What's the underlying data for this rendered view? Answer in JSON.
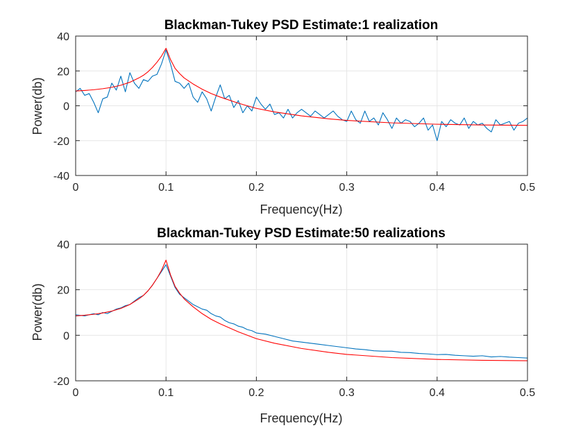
{
  "chart_data": [
    {
      "type": "line",
      "title": "Blackman-Tukey PSD Estimate:1 realization",
      "xlabel": "Frequency(Hz)",
      "ylabel": "Power(db)",
      "xlim": [
        0,
        0.5
      ],
      "ylim": [
        -40,
        40
      ],
      "xticks": [
        0,
        0.1,
        0.2,
        0.3,
        0.4,
        0.5
      ],
      "yticks": [
        -40,
        -20,
        0,
        20,
        40
      ],
      "xtick_labels": [
        "0",
        "0.1",
        "0.2",
        "0.3",
        "0.4",
        "0.5"
      ],
      "ytick_labels": [
        "-40",
        "-20",
        "0",
        "20",
        "40"
      ],
      "grid": true,
      "series": [
        {
          "color": "#0072BD",
          "x": [
            0,
            0.005,
            0.01,
            0.015,
            0.02,
            0.025,
            0.03,
            0.035,
            0.04,
            0.045,
            0.05,
            0.055,
            0.06,
            0.065,
            0.07,
            0.075,
            0.08,
            0.085,
            0.09,
            0.095,
            0.1,
            0.105,
            0.11,
            0.115,
            0.12,
            0.125,
            0.13,
            0.135,
            0.14,
            0.145,
            0.15,
            0.155,
            0.16,
            0.165,
            0.17,
            0.175,
            0.18,
            0.185,
            0.19,
            0.195,
            0.2,
            0.205,
            0.21,
            0.215,
            0.22,
            0.225,
            0.23,
            0.235,
            0.24,
            0.245,
            0.25,
            0.255,
            0.26,
            0.265,
            0.27,
            0.275,
            0.28,
            0.285,
            0.29,
            0.295,
            0.3,
            0.305,
            0.31,
            0.315,
            0.32,
            0.325,
            0.33,
            0.335,
            0.34,
            0.345,
            0.35,
            0.355,
            0.36,
            0.365,
            0.37,
            0.375,
            0.38,
            0.385,
            0.39,
            0.395,
            0.4,
            0.405,
            0.41,
            0.415,
            0.42,
            0.425,
            0.43,
            0.435,
            0.44,
            0.445,
            0.45,
            0.455,
            0.46,
            0.465,
            0.47,
            0.475,
            0.48,
            0.485,
            0.49,
            0.495,
            0.5
          ],
          "y": [
            8,
            10,
            6,
            7,
            2,
            -4,
            4,
            5,
            13,
            9,
            17,
            8,
            19,
            13,
            10,
            15,
            14,
            17,
            18,
            24,
            32,
            24,
            14,
            13,
            10,
            13,
            5,
            2,
            8,
            4,
            -3,
            5,
            12,
            4,
            6,
            -1,
            3,
            -4,
            0,
            -3,
            5,
            1,
            -2,
            1,
            -5,
            -4,
            -7,
            -2,
            -7,
            -4,
            -2,
            -4,
            -6,
            -3,
            -5,
            -7,
            -5,
            -3,
            -6,
            -8,
            -9,
            -3,
            -8,
            -10,
            -3,
            -9,
            -7,
            -11,
            -4,
            -8,
            -13,
            -7,
            -10,
            -8,
            -9,
            -12,
            -10,
            -7,
            -14,
            -11,
            -20,
            -9,
            -12,
            -8,
            -10,
            -11,
            -7,
            -13,
            -9,
            -11,
            -10,
            -13,
            -15,
            -8,
            -11,
            -10,
            -9,
            -14,
            -10,
            -9,
            -7
          ]
        },
        {
          "color": "#FF0000",
          "x": [
            0,
            0.01,
            0.02,
            0.03,
            0.04,
            0.05,
            0.06,
            0.07,
            0.075,
            0.08,
            0.085,
            0.09,
            0.095,
            0.1,
            0.105,
            0.11,
            0.115,
            0.12,
            0.13,
            0.14,
            0.15,
            0.16,
            0.18,
            0.2,
            0.22,
            0.25,
            0.28,
            0.3,
            0.35,
            0.4,
            0.45,
            0.5
          ],
          "y": [
            8.5,
            8.8,
            9.2,
            9.8,
            10.6,
            11.8,
            13.5,
            16,
            17.5,
            19.5,
            22,
            25,
            28.5,
            33,
            26.5,
            21.5,
            18.5,
            16,
            12.5,
            9.5,
            7,
            5,
            1.5,
            -1.5,
            -3.5,
            -5.8,
            -7.5,
            -8.4,
            -9.8,
            -10.6,
            -11,
            -11.2
          ]
        }
      ]
    },
    {
      "type": "line",
      "title": "Blackman-Tukey PSD Estimate:50 realizations",
      "xlabel": "Frequency(Hz)",
      "ylabel": "Power(db)",
      "xlim": [
        0,
        0.5
      ],
      "ylim": [
        -20,
        40
      ],
      "xticks": [
        0,
        0.1,
        0.2,
        0.3,
        0.4,
        0.5
      ],
      "yticks": [
        -20,
        0,
        20,
        40
      ],
      "xtick_labels": [
        "0",
        "0.1",
        "0.2",
        "0.3",
        "0.4",
        "0.5"
      ],
      "ytick_labels": [
        "-20",
        "0",
        "20",
        "40"
      ],
      "grid": true,
      "series": [
        {
          "color": "#0072BD",
          "x": [
            0,
            0.01,
            0.02,
            0.025,
            0.03,
            0.035,
            0.04,
            0.045,
            0.05,
            0.055,
            0.06,
            0.065,
            0.07,
            0.075,
            0.08,
            0.085,
            0.09,
            0.095,
            0.1,
            0.105,
            0.11,
            0.115,
            0.12,
            0.125,
            0.13,
            0.135,
            0.14,
            0.145,
            0.15,
            0.155,
            0.16,
            0.165,
            0.17,
            0.175,
            0.18,
            0.185,
            0.19,
            0.195,
            0.2,
            0.21,
            0.22,
            0.23,
            0.24,
            0.25,
            0.26,
            0.27,
            0.28,
            0.29,
            0.3,
            0.31,
            0.32,
            0.33,
            0.34,
            0.35,
            0.36,
            0.37,
            0.38,
            0.39,
            0.4,
            0.41,
            0.42,
            0.43,
            0.44,
            0.45,
            0.46,
            0.47,
            0.48,
            0.49,
            0.5
          ],
          "y": [
            9,
            8.5,
            9.5,
            9,
            10,
            9.5,
            10.5,
            11.5,
            12,
            13,
            13.5,
            15,
            16.5,
            17.5,
            19.5,
            22,
            25,
            28,
            31,
            26,
            21,
            18,
            16.5,
            15,
            13.5,
            12.5,
            11.5,
            11,
            9.5,
            8.5,
            8,
            6.5,
            5.5,
            5,
            4,
            3.5,
            2.5,
            2,
            1,
            0.5,
            -0.5,
            -1.5,
            -2.5,
            -3,
            -3.5,
            -4,
            -4.5,
            -5,
            -5.5,
            -6,
            -6.3,
            -6.8,
            -7,
            -7,
            -7.5,
            -7.6,
            -8,
            -8.2,
            -8.5,
            -8.4,
            -8.8,
            -9,
            -9.2,
            -9,
            -9.5,
            -9.3,
            -9.6,
            -9.8,
            -10
          ]
        },
        {
          "color": "#FF0000",
          "x": [
            0,
            0.01,
            0.02,
            0.03,
            0.04,
            0.05,
            0.06,
            0.07,
            0.075,
            0.08,
            0.085,
            0.09,
            0.095,
            0.1,
            0.105,
            0.11,
            0.115,
            0.12,
            0.13,
            0.14,
            0.15,
            0.16,
            0.18,
            0.2,
            0.22,
            0.25,
            0.28,
            0.3,
            0.35,
            0.4,
            0.45,
            0.5
          ],
          "y": [
            8.5,
            8.8,
            9.2,
            9.8,
            10.6,
            11.8,
            13.5,
            16,
            17.5,
            19.5,
            22,
            25,
            28.5,
            33,
            26.5,
            21.5,
            18.5,
            16,
            12.5,
            9.5,
            7,
            5,
            1.5,
            -1.5,
            -3.5,
            -5.8,
            -7.5,
            -8.4,
            -9.8,
            -10.6,
            -11,
            -11.2
          ]
        }
      ]
    }
  ]
}
